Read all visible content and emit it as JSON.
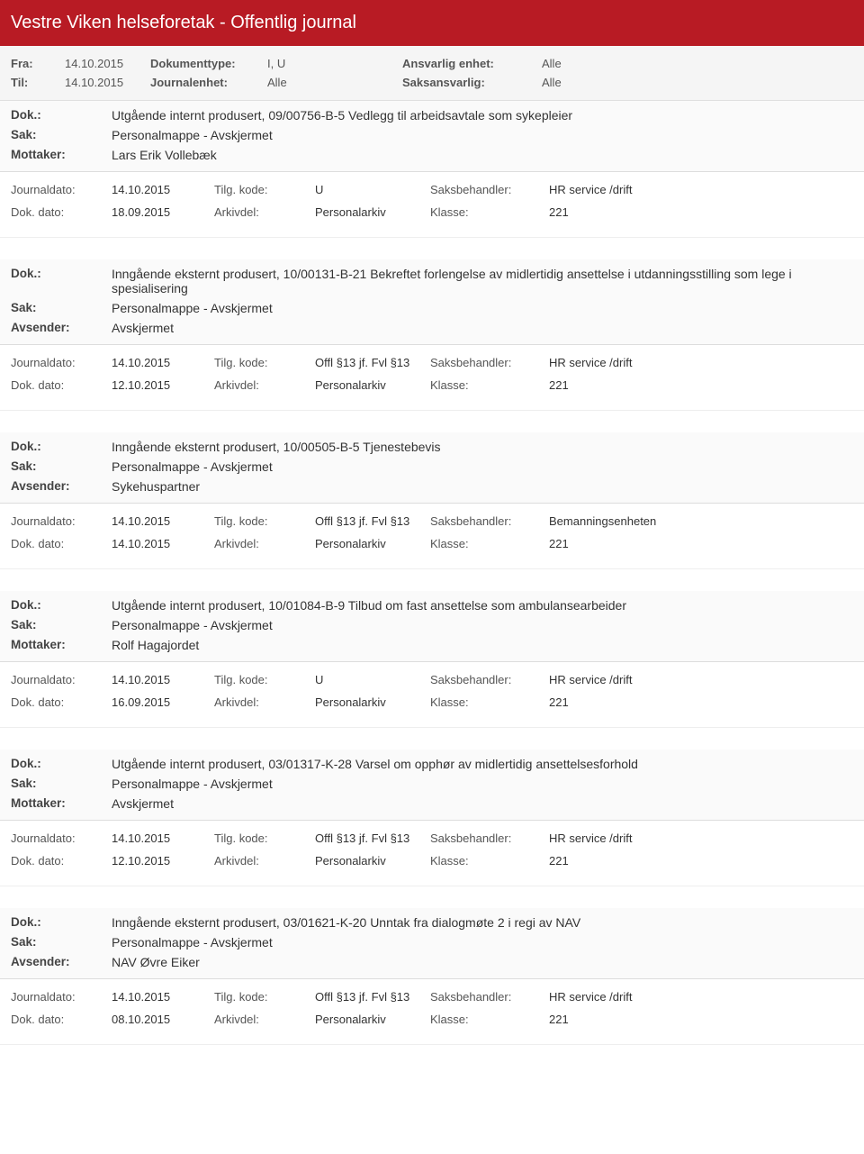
{
  "header": {
    "title": "Vestre Viken helseforetak - Offentlig journal"
  },
  "filters": {
    "fra_label": "Fra:",
    "fra_value": "14.10.2015",
    "til_label": "Til:",
    "til_value": "14.10.2015",
    "doktype_label": "Dokumenttype:",
    "doktype_value": "I, U",
    "journalenhet_label": "Journalenhet:",
    "journalenhet_value": "Alle",
    "ansvarlig_label": "Ansvarlig enhet:",
    "ansvarlig_value": "Alle",
    "saksansvarlig_label": "Saksansvarlig:",
    "saksansvarlig_value": "Alle"
  },
  "labels": {
    "dok": "Dok.:",
    "sak": "Sak:",
    "mottaker": "Mottaker:",
    "avsender": "Avsender:",
    "journaldato": "Journaldato:",
    "dokdato": "Dok. dato:",
    "tilgkode": "Tilg. kode:",
    "arkivdel": "Arkivdel:",
    "saksbehandler": "Saksbehandler:",
    "klasse": "Klasse:"
  },
  "entries": [
    {
      "dok": "Utgående internt produsert, 09/00756-B-5 Vedlegg til arbeidsavtale som sykepleier",
      "sak": "Personalmappe - Avskjermet",
      "party_label": "Mottaker:",
      "party": "Lars Erik Vollebæk",
      "journaldato": "14.10.2015",
      "dokdato": "18.09.2015",
      "tilgkode": "U",
      "arkivdel": "Personalarkiv",
      "saksbehandler": "HR service /drift",
      "klasse": "221"
    },
    {
      "dok": "Inngående eksternt produsert, 10/00131-B-21 Bekreftet forlengelse av midlertidig ansettelse i utdanningsstilling som lege i spesialisering",
      "sak": "Personalmappe - Avskjermet",
      "party_label": "Avsender:",
      "party": "Avskjermet",
      "journaldato": "14.10.2015",
      "dokdato": "12.10.2015",
      "tilgkode": "Offl §13 jf. Fvl §13",
      "arkivdel": "Personalarkiv",
      "saksbehandler": "HR service /drift",
      "klasse": "221"
    },
    {
      "dok": "Inngående eksternt produsert, 10/00505-B-5 Tjenestebevis",
      "sak": "Personalmappe - Avskjermet",
      "party_label": "Avsender:",
      "party": "Sykehuspartner",
      "journaldato": "14.10.2015",
      "dokdato": "14.10.2015",
      "tilgkode": "Offl §13 jf. Fvl §13",
      "arkivdel": "Personalarkiv",
      "saksbehandler": "Bemanningsenheten",
      "klasse": "221"
    },
    {
      "dok": "Utgående internt produsert, 10/01084-B-9 Tilbud om fast ansettelse som ambulansearbeider",
      "sak": "Personalmappe - Avskjermet",
      "party_label": "Mottaker:",
      "party": "Rolf Hagajordet",
      "journaldato": "14.10.2015",
      "dokdato": "16.09.2015",
      "tilgkode": "U",
      "arkivdel": "Personalarkiv",
      "saksbehandler": "HR service /drift",
      "klasse": "221"
    },
    {
      "dok": "Utgående internt produsert, 03/01317-K-28 Varsel om opphør av midlertidig ansettelsesforhold",
      "sak": "Personalmappe - Avskjermet",
      "party_label": "Mottaker:",
      "party": "Avskjermet",
      "journaldato": "14.10.2015",
      "dokdato": "12.10.2015",
      "tilgkode": "Offl §13 jf. Fvl §13",
      "arkivdel": "Personalarkiv",
      "saksbehandler": "HR service /drift",
      "klasse": "221"
    },
    {
      "dok": "Inngående eksternt produsert, 03/01621-K-20 Unntak fra dialogmøte 2 i regi av NAV",
      "sak": "Personalmappe - Avskjermet",
      "party_label": "Avsender:",
      "party": "NAV Øvre Eiker",
      "journaldato": "14.10.2015",
      "dokdato": "08.10.2015",
      "tilgkode": "Offl §13 jf. Fvl §13",
      "arkivdel": "Personalarkiv",
      "saksbehandler": "HR service /drift",
      "klasse": "221"
    }
  ]
}
